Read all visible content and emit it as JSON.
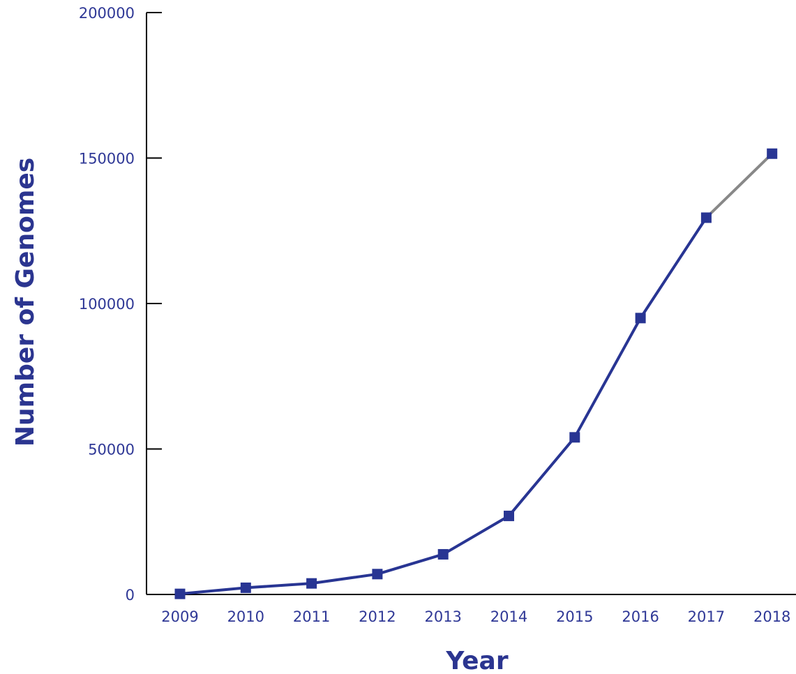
{
  "chart_data": {
    "type": "line",
    "xlabel": "Year",
    "ylabel": "Number of Genomes",
    "categories": [
      "2009",
      "2010",
      "2011",
      "2012",
      "2013",
      "2014",
      "2015",
      "2016",
      "2017",
      "2018"
    ],
    "values": [
      200,
      2300,
      3800,
      7000,
      13800,
      27000,
      54000,
      95000,
      129500,
      151500
    ],
    "ylim": [
      0,
      200000
    ],
    "y_ticks": [
      "0",
      "50000",
      "100000",
      "150000",
      "200000"
    ],
    "grid": false,
    "legend": "none",
    "colors": {
      "series": "#283593",
      "projected_segment": "#888888",
      "projected_label": "#8c8c8c",
      "axis": "#000000",
      "tick_label": "#2f3896",
      "axis_title": "#2b3590"
    },
    "projected_from_index": 8
  }
}
